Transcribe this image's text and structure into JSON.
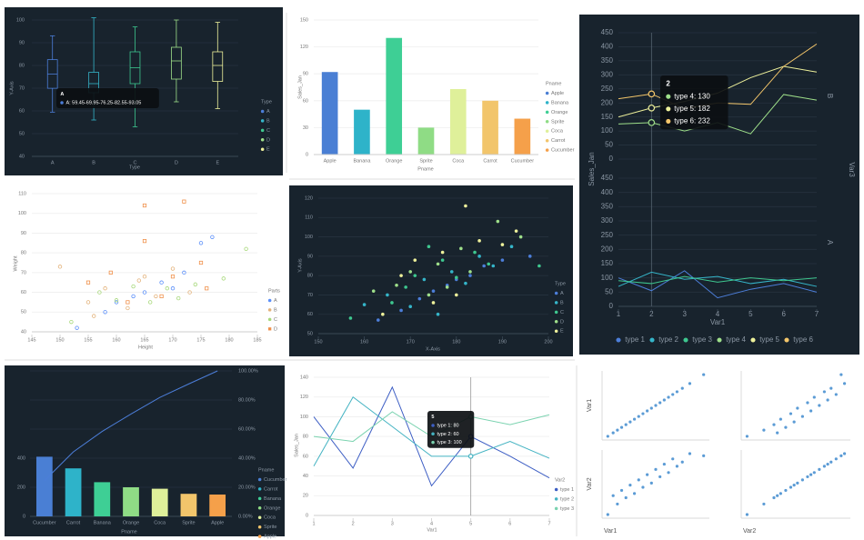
{
  "chart_data": [
    {
      "type": "box",
      "theme": "dark",
      "grid": true,
      "xlabel": "Type",
      "ylabel": "Y-Axis",
      "legend_title": "Type",
      "categories": [
        "A",
        "B",
        "C",
        "D",
        "E"
      ],
      "boxes": [
        [
          59.45,
          69.95,
          76.25,
          82.55,
          93.05
        ],
        [
          56,
          68,
          72,
          77,
          101
        ],
        [
          53,
          72,
          79,
          86,
          97
        ],
        [
          64,
          74,
          82,
          88,
          100
        ],
        [
          61,
          73,
          80,
          86,
          99
        ]
      ],
      "colors": [
        "#4c7ed9",
        "#35b5c9",
        "#3ec78f",
        "#9edf8a",
        "#eef19b"
      ],
      "ylim": [
        40,
        100
      ],
      "yticks": [
        40,
        50,
        60,
        70,
        80,
        90,
        100
      ],
      "tooltip": {
        "title": "A",
        "items": [
          {
            "text": "A: 59.45-69.95-76.25-82.55-93.05",
            "color": "#4c7ed9"
          }
        ]
      }
    },
    {
      "type": "bar",
      "theme": "light",
      "grid": true,
      "xlabel": "Pname",
      "ylabel": "Sales_Jan",
      "legend_title": "Pname",
      "categories": [
        "Apple",
        "Banana",
        "Orange",
        "Sprite",
        "Coca",
        "Carrot",
        "Cucumber"
      ],
      "values": [
        92,
        50,
        130,
        30,
        73,
        60,
        40
      ],
      "colors": [
        "#4a7fd4",
        "#2eb3c9",
        "#3ecf95",
        "#8fdc85",
        "#dff09a",
        "#f2c56b",
        "#f5a04a"
      ],
      "ylim": [
        0,
        150
      ],
      "yticks": [
        0,
        30,
        60,
        90,
        120,
        150
      ]
    },
    {
      "type": "line",
      "theme": "dark",
      "grid": true,
      "xlabel": "Var1",
      "ylabel": "Sales_Jan",
      "legend": "bottom",
      "facet_title": "Var3",
      "facets": [
        "B",
        "A"
      ],
      "x": [
        1,
        2,
        3,
        4,
        5,
        6,
        7
      ],
      "xlim": [
        1,
        7
      ],
      "xticks": [
        1,
        2,
        3,
        4,
        5,
        6,
        7
      ],
      "ylim": [
        0,
        450
      ],
      "yticks": [
        0,
        50,
        100,
        150,
        200,
        250,
        300,
        350,
        400,
        450
      ],
      "series": [
        {
          "name": "type 1",
          "color": "#4c7ed9",
          "facet": "A",
          "values": [
            100,
            55,
            125,
            30,
            60,
            80,
            50
          ]
        },
        {
          "name": "type 2",
          "color": "#35b5c9",
          "facet": "A",
          "values": [
            70,
            120,
            95,
            105,
            80,
            95,
            70
          ]
        },
        {
          "name": "type 3",
          "color": "#3ec78f",
          "facet": "A",
          "values": [
            90,
            80,
            105,
            85,
            100,
            90,
            100
          ]
        },
        {
          "name": "type 4",
          "color": "#9edf8a",
          "facet": "B",
          "values": [
            125,
            130,
            100,
            130,
            90,
            230,
            210
          ]
        },
        {
          "name": "type 5",
          "color": "#eef19b",
          "facet": "B",
          "values": [
            150,
            182,
            205,
            235,
            290,
            330,
            310
          ]
        },
        {
          "name": "type 6",
          "color": "#f4c66a",
          "facet": "B",
          "values": [
            215,
            232,
            180,
            200,
            195,
            330,
            410
          ]
        }
      ],
      "crosshair": 2,
      "tooltip": {
        "title": "2",
        "items": [
          {
            "text": "type 4:  130",
            "color": "#9edf8a"
          },
          {
            "text": "type 5:  182",
            "color": "#eef19b"
          },
          {
            "text": "type 6:  232",
            "color": "#f4c66a"
          }
        ]
      }
    },
    {
      "type": "scatter",
      "theme": "light",
      "grid": true,
      "marker_fill": "hollow",
      "xlabel": "Height",
      "ylabel": "Weight",
      "legend_title": "Parts",
      "xlim": [
        145,
        185
      ],
      "xticks": [
        145,
        150,
        155,
        160,
        165,
        170,
        175,
        180,
        185
      ],
      "ylim": [
        40,
        110
      ],
      "yticks": [
        40,
        50,
        60,
        70,
        80,
        90,
        100,
        110
      ],
      "series": [
        {
          "name": "A",
          "color": "#5b8ff9",
          "marker": "circle",
          "x": [
            153,
            160,
            165,
            168,
            172,
            175,
            177,
            158,
            163,
            170
          ],
          "values": [
            42,
            55,
            60,
            65,
            70,
            85,
            88,
            50,
            58,
            62
          ]
        },
        {
          "name": "B",
          "color": "#e3b27a",
          "marker": "circle",
          "x": [
            150,
            155,
            158,
            162,
            165,
            167,
            170,
            173,
            156,
            164
          ],
          "values": [
            73,
            55,
            62,
            52,
            68,
            58,
            72,
            60,
            48,
            66
          ]
        },
        {
          "name": "C",
          "color": "#a7d87a",
          "marker": "circle",
          "x": [
            152,
            157,
            160,
            163,
            166,
            169,
            171,
            174,
            179,
            183
          ],
          "values": [
            45,
            60,
            56,
            63,
            55,
            62,
            57,
            64,
            67,
            82
          ]
        },
        {
          "name": "D",
          "color": "#f0904a",
          "marker": "square",
          "x": [
            155,
            159,
            162,
            165,
            165,
            168,
            170,
            172,
            175,
            176
          ],
          "values": [
            65,
            70,
            55,
            104,
            86,
            58,
            68,
            106,
            75,
            62
          ]
        }
      ]
    },
    {
      "type": "scatter",
      "theme": "dark",
      "grid": true,
      "marker_fill": "filled",
      "xlabel": "X-Axis",
      "ylabel": "Y-Axis",
      "legend_title": "Type",
      "xlim": [
        150,
        200
      ],
      "xticks": [
        150,
        160,
        170,
        180,
        190,
        200
      ],
      "ylim": [
        50,
        120
      ],
      "yticks": [
        50,
        60,
        70,
        80,
        90,
        100,
        110,
        120
      ],
      "series": [
        {
          "name": "A",
          "color": "#4c7ed9",
          "marker": "circle",
          "x": [
            163,
            168,
            172,
            175,
            178,
            180,
            183,
            186,
            190,
            196
          ],
          "values": [
            57,
            62,
            68,
            72,
            75,
            78,
            80,
            85,
            88,
            90
          ]
        },
        {
          "name": "B",
          "color": "#35b5c9",
          "marker": "circle",
          "x": [
            160,
            165,
            170,
            173,
            176,
            179,
            182,
            185,
            188,
            192
          ],
          "values": [
            65,
            70,
            64,
            78,
            60,
            82,
            76,
            90,
            85,
            95
          ]
        },
        {
          "name": "C",
          "color": "#3ec78f",
          "marker": "circle",
          "x": [
            157,
            166,
            169,
            171,
            174,
            177,
            180,
            184,
            187,
            198
          ],
          "values": [
            58,
            66,
            74,
            80,
            95,
            88,
            79,
            92,
            86,
            85
          ]
        },
        {
          "name": "D",
          "color": "#9edf8a",
          "marker": "circle",
          "x": [
            162,
            167,
            170,
            174,
            176,
            178,
            181,
            183,
            189,
            194
          ],
          "values": [
            72,
            75,
            82,
            70,
            86,
            74,
            94,
            82,
            108,
            100
          ]
        },
        {
          "name": "E",
          "color": "#eef19b",
          "marker": "circle",
          "x": [
            164,
            168,
            171,
            175,
            177,
            180,
            182,
            185,
            190,
            193
          ],
          "values": [
            60,
            80,
            88,
            66,
            92,
            70,
            116,
            98,
            96,
            103
          ]
        }
      ]
    },
    {
      "type": "pareto",
      "theme": "dark",
      "grid": true,
      "xlabel": "Pname",
      "legend_title": "Pname",
      "categories": [
        "Cucumber",
        "Carrot",
        "Banana",
        "Orange",
        "Coca",
        "Sprite",
        "Apple"
      ],
      "values": [
        410,
        330,
        235,
        200,
        190,
        155,
        150
      ],
      "colors": [
        "#4a7fd4",
        "#2eb3c9",
        "#3ecf95",
        "#8fdc85",
        "#dff09a",
        "#f2c56b",
        "#f5a04a"
      ],
      "ylim": [
        0,
        1000
      ],
      "yticks": [
        0,
        200,
        400
      ],
      "line": {
        "color": "#4c7ed9",
        "axis": "y2",
        "values": [
          24.55,
          44.31,
          58.38,
          70.36,
          81.74,
          91.02,
          100
        ]
      },
      "y2lim": [
        0,
        100
      ],
      "y2ticks": [
        {
          "value": 0,
          "label": "0.00%"
        },
        {
          "value": 20,
          "label": "20.00%"
        },
        {
          "value": 40,
          "label": "40.00%"
        },
        {
          "value": 60,
          "label": "60.00%"
        },
        {
          "value": 80,
          "label": "80.00%"
        },
        {
          "value": 100,
          "label": "100.00%"
        }
      ]
    },
    {
      "type": "line",
      "theme": "light",
      "grid": true,
      "xlabel": "Var1",
      "ylabel": "Sales_Jan",
      "legend": "right",
      "legend_title": "Var2",
      "x": [
        1,
        2,
        3,
        4,
        5,
        6,
        7
      ],
      "xlim": [
        1,
        7
      ],
      "xticks": [
        1,
        2,
        3,
        4,
        5,
        6,
        7
      ],
      "ylim": [
        0,
        140
      ],
      "yticks": [
        0,
        20,
        40,
        60,
        80,
        100,
        120,
        140
      ],
      "series": [
        {
          "name": "type 1",
          "color": "#3d5ec4",
          "values": [
            100,
            48,
            130,
            30,
            80,
            60,
            38
          ]
        },
        {
          "name": "type 2",
          "color": "#44b3c2",
          "values": [
            50,
            120,
            90,
            60,
            60,
            75,
            58
          ]
        },
        {
          "name": "type 3",
          "color": "#7bd3b0",
          "values": [
            80,
            75,
            105,
            80,
            100,
            92,
            102
          ]
        }
      ],
      "crosshair": 5,
      "tooltip": {
        "title": "5",
        "items": [
          {
            "text": "type 1:  80",
            "color": "#3d5ec4"
          },
          {
            "text": "type 2:  60",
            "color": "#44b3c2"
          },
          {
            "text": "type 3:  100",
            "color": "#7bd3b0"
          }
        ]
      }
    },
    {
      "type": "scatter_matrix",
      "theme": "light",
      "color": "#5b9bd5",
      "variables": [
        "Var1",
        "Var2"
      ],
      "values": [
        [
          5,
          10,
          14,
          18,
          22,
          26,
          30,
          34,
          38,
          42,
          46,
          50,
          54,
          58,
          62,
          66,
          70,
          75,
          82,
          95
        ],
        [
          2,
          20,
          12,
          25,
          18,
          30,
          22,
          35,
          28,
          40,
          32,
          45,
          38,
          50,
          42,
          55,
          48,
          52,
          60,
          58
        ]
      ]
    }
  ]
}
